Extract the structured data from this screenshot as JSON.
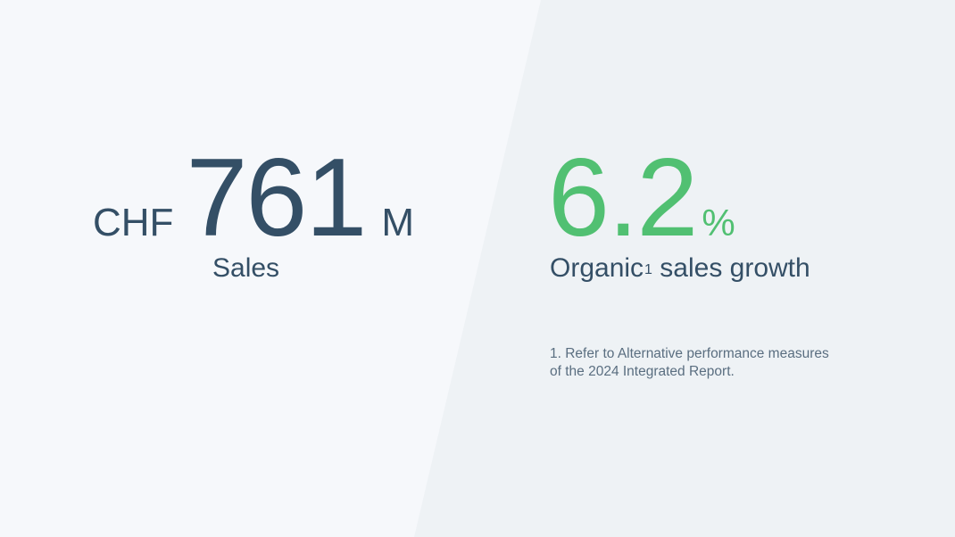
{
  "colors": {
    "primary": "#344f66",
    "accent": "#51c072",
    "background_left": "#f6f8fb",
    "background_right": "#eef2f5"
  },
  "sales": {
    "prefix": "CHF",
    "value": "761",
    "suffix": "M",
    "label": "Sales"
  },
  "growth": {
    "value": "6.2",
    "suffix": "%",
    "label_main": "Organic",
    "label_sup": "1",
    "label_rest": " sales growth"
  },
  "footnote": {
    "line1": "1. Refer to Alternative performance measures",
    "line2": "of the 2024 Integrated Report."
  }
}
